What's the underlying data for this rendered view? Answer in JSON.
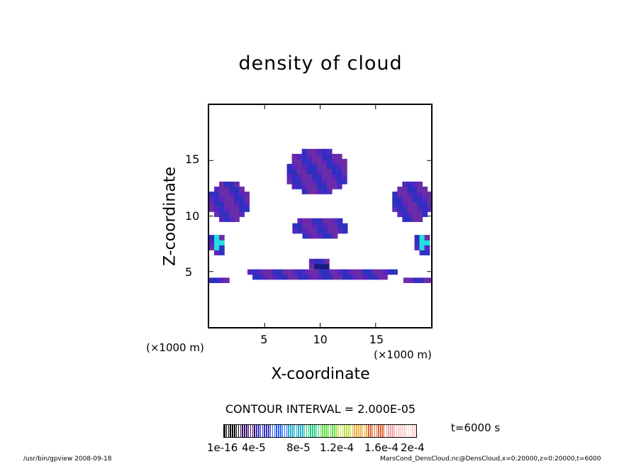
{
  "title": "density of cloud",
  "chart_data": {
    "type": "heatmap",
    "title": "density of cloud",
    "xlabel": "X-coordinate",
    "ylabel": "Z-coordinate",
    "x_unit": "(×1000 m)",
    "xlim": [
      0,
      20
    ],
    "ylim": [
      0,
      20
    ],
    "xticks": [
      5,
      10,
      15
    ],
    "yticks": [
      5,
      10,
      15
    ],
    "contour_interval_text": "CONTOUR INTERVAL = 2.000E-05",
    "colorbar": {
      "tick_labels": [
        "1e-16",
        "4e-5",
        "8e-5",
        "1.2e-4",
        "1.6e-4",
        "2e-4"
      ],
      "colors": [
        "#000000",
        "#3a0a6a",
        "#3030c0",
        "#2060ff",
        "#20b0d0",
        "#20d080",
        "#60e040",
        "#c0e040",
        "#f0b040",
        "#e06030",
        "#f0a0a0",
        "#ffd0d0"
      ]
    },
    "regions": [
      {
        "name": "upper-cloud",
        "x": [
          7,
          12.5
        ],
        "z": [
          12,
          16
        ],
        "level": 1
      },
      {
        "name": "middle-cloud",
        "x": [
          7.5,
          12.5
        ],
        "z": [
          8,
          10
        ],
        "level": 1
      },
      {
        "name": "lower-band",
        "x": [
          3,
          17
        ],
        "z": [
          4.3,
          5.3
        ],
        "level": 1
      },
      {
        "name": "lower-core",
        "x": [
          9,
          11
        ],
        "z": [
          4.8,
          6.2
        ],
        "level": 3
      },
      {
        "name": "left-band",
        "x": [
          0,
          2
        ],
        "z": [
          4,
          4.6
        ],
        "level": 2
      },
      {
        "name": "right-band",
        "x": [
          17.5,
          20
        ],
        "z": [
          4,
          4.6
        ],
        "level": 2
      },
      {
        "name": "left-cloud",
        "x": [
          0,
          3.5
        ],
        "z": [
          9.5,
          13
        ],
        "level": 1
      },
      {
        "name": "right-cloud",
        "x": [
          16.5,
          20
        ],
        "z": [
          9.5,
          13
        ],
        "level": 1
      },
      {
        "name": "left-edge-core",
        "x": [
          0,
          1.5
        ],
        "z": [
          6.5,
          8.5
        ],
        "level": 4
      },
      {
        "name": "right-edge-core",
        "x": [
          18.5,
          20
        ],
        "z": [
          6.5,
          8.5
        ],
        "level": 4
      }
    ]
  },
  "time_label": "t=6000 s",
  "footer": {
    "left": "/usr/bin/gpview   2008-09-18",
    "right": "MarsCond_DensCloud.nc@DensCloud,x=0:20000,z=0:20000,t=6000"
  }
}
